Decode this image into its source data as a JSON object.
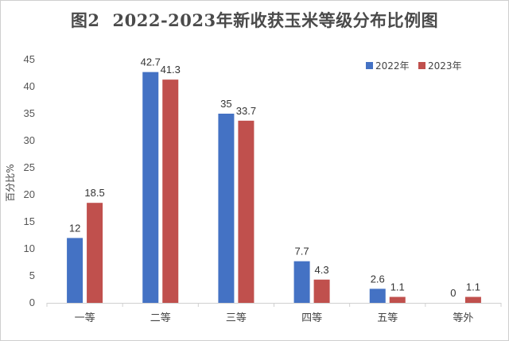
{
  "chart_data": {
    "type": "bar",
    "title_prefix": "图2",
    "title": "2022-2023年新收获玉米等级分布比例图",
    "ylabel": "百分比%",
    "xlabel": "",
    "categories": [
      "一等",
      "二等",
      "三等",
      "四等",
      "五等",
      "等外"
    ],
    "series": [
      {
        "name": "2022年",
        "color": "#4472C4",
        "values": [
          12,
          42.7,
          35,
          7.7,
          2.6,
          0
        ]
      },
      {
        "name": "2023年",
        "color": "#C0504D",
        "values": [
          18.5,
          41.3,
          33.7,
          4.3,
          1.1,
          1.1
        ]
      }
    ],
    "ylim": [
      0,
      45
    ],
    "yticks": [
      0,
      5,
      10,
      15,
      20,
      25,
      30,
      35,
      40,
      45
    ],
    "grid": false,
    "legend": "top-right"
  }
}
